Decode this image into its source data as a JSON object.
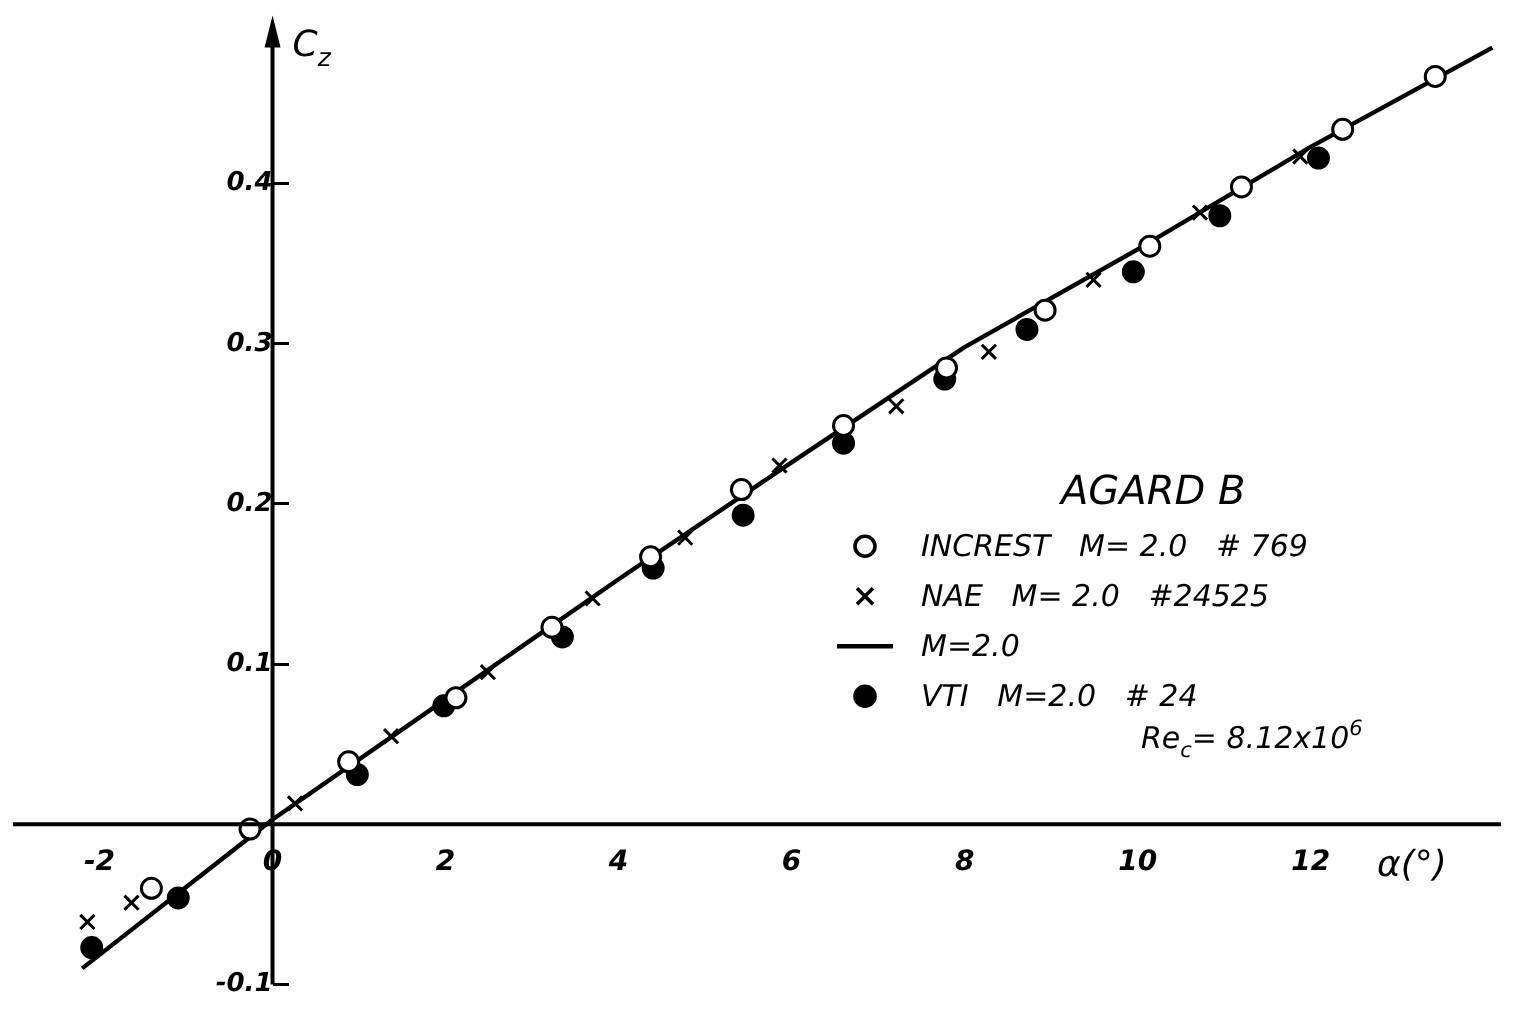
{
  "chart_data": {
    "type": "scatter",
    "xlabel": "α(°)",
    "ylabel": "C$_{z}$",
    "legend_title": "AGARD B",
    "xlim": [
      -3,
      14.2
    ],
    "ylim": [
      -0.1,
      0.49
    ],
    "xticks": [
      -2,
      0,
      2,
      4,
      6,
      8,
      10,
      12
    ],
    "yticks": [
      -0.1,
      0.1,
      0.2,
      0.3,
      0.4
    ],
    "grid": false,
    "legend": "bottom right",
    "annotations": [
      "Re$_{c}$= 8.12x10$^{6}$"
    ],
    "series": [
      {
        "name": "INCREST   M= 2.0   # 769",
        "marker": "circle",
        "color": "#ffffff",
        "x": [
          -1.4,
          -0.26,
          0.88,
          2.12,
          3.23,
          4.37,
          5.42,
          6.6,
          7.79,
          8.93,
          10.14,
          11.2,
          12.37,
          13.44
        ],
        "values": [
          -0.04,
          -0.003,
          0.039,
          0.079,
          0.123,
          0.167,
          0.209,
          0.249,
          0.285,
          0.321,
          0.361,
          0.398,
          0.434,
          0.467
        ]
      },
      {
        "name": "NAE   M= 2.0   #24525",
        "marker": "cross",
        "color": "#000000",
        "x": [
          -2.14,
          -1.63,
          0.26,
          1.37,
          2.49,
          3.7,
          4.77,
          5.86,
          7.21,
          8.28,
          9.49,
          10.72,
          11.88
        ],
        "values": [
          -0.061,
          -0.049,
          0.013,
          0.055,
          0.095,
          0.141,
          0.179,
          0.224,
          0.261,
          0.295,
          0.34,
          0.382,
          0.417
        ]
      },
      {
        "name": "M=2.0",
        "type": "line",
        "marker": "none",
        "line_style": "solid",
        "color": "#000000",
        "x": [
          -2.2,
          0,
          2,
          4,
          6,
          8,
          10,
          12,
          14.1
        ],
        "values": [
          -0.09,
          0.003,
          0.078,
          0.153,
          0.226,
          0.298,
          0.359,
          0.423,
          0.485
        ]
      },
      {
        "name": "VTI   M=2.0   # 24",
        "marker": "circle",
        "color": "#000000",
        "x": [
          -2.09,
          -1.09,
          0.98,
          1.98,
          3.35,
          4.4,
          5.44,
          6.6,
          7.77,
          8.72,
          9.95,
          10.95,
          12.09
        ],
        "values": [
          -0.077,
          -0.046,
          0.031,
          0.074,
          0.117,
          0.16,
          0.193,
          0.238,
          0.278,
          0.309,
          0.345,
          0.38,
          0.416
        ]
      }
    ]
  }
}
